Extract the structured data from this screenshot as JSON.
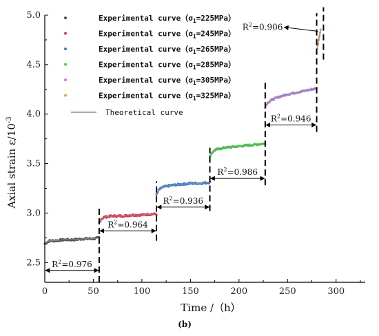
{
  "chart_data": {
    "type": "line",
    "xlabel": "Time /（h）",
    "ylabel": "Axial strain ε/10",
    "ylabel_exp": "-3",
    "caption": "(b)",
    "xlim": [
      0,
      330
    ],
    "ylim": [
      2.3,
      5.0
    ],
    "xticks": [
      0,
      50,
      100,
      150,
      200,
      250,
      300
    ],
    "yticks": [
      2.5,
      3.0,
      3.5,
      4.0,
      4.5,
      5.0
    ],
    "ytick_labels": [
      "2.5",
      "3.0",
      "3.5",
      "4.0",
      "4.5",
      "5.0"
    ],
    "series": [
      {
        "name": "Experimental curve（σ",
        "sub": "1",
        "suffix": "=225MPa）",
        "color": "#505050",
        "x": [
          0,
          5,
          10,
          20,
          30,
          40,
          50,
          56
        ],
        "y": [
          2.69,
          2.72,
          2.72,
          2.73,
          2.73,
          2.74,
          2.74,
          2.75
        ]
      },
      {
        "name": "Experimental curve（σ",
        "sub": "1",
        "suffix": "=245MPa）",
        "color": "#e0344a",
        "x": [
          56,
          58,
          62,
          70,
          80,
          90,
          100,
          110,
          115
        ],
        "y": [
          2.9,
          2.94,
          2.96,
          2.97,
          2.97,
          2.98,
          2.98,
          2.99,
          2.99
        ]
      },
      {
        "name": "Experimental curve（σ",
        "sub": "1",
        "suffix": "=265MPa）",
        "color": "#3a7fd5",
        "x": [
          115,
          117,
          121,
          130,
          140,
          150,
          160,
          170
        ],
        "y": [
          3.18,
          3.23,
          3.26,
          3.28,
          3.29,
          3.3,
          3.3,
          3.31
        ]
      },
      {
        "name": "Experimental curve（σ",
        "sub": "1",
        "suffix": "=285MPa）",
        "color": "#3fd53f",
        "x": [
          170,
          172,
          176,
          185,
          195,
          205,
          215,
          225,
          227
        ],
        "y": [
          3.57,
          3.61,
          3.64,
          3.66,
          3.67,
          3.68,
          3.69,
          3.7,
          3.7
        ]
      },
      {
        "name": "Experimental curve（σ",
        "sub": "1",
        "suffix": "=305MPa）",
        "color": "#b57fe0",
        "x": [
          227,
          229,
          233,
          240,
          250,
          260,
          270,
          280
        ],
        "y": [
          4.07,
          4.11,
          4.14,
          4.17,
          4.2,
          4.22,
          4.24,
          4.26
        ]
      },
      {
        "name": "Experimental curve（σ",
        "sub": "1",
        "suffix": "=325MPa）",
        "color": "#e8a13a",
        "x": [
          280,
          281,
          282,
          283,
          284
        ],
        "y": [
          4.63,
          4.69,
          4.75,
          4.8,
          4.85
        ]
      }
    ],
    "theory": {
      "name": "Theoretical curve",
      "color": "#8c8c8c"
    },
    "stage_boundaries": [
      56,
      115,
      170,
      227,
      280,
      287
    ],
    "stage_arrows": [
      {
        "x0": 0,
        "x1": 56,
        "y": 2.42,
        "label": "0.976"
      },
      {
        "x0": 56,
        "x1": 115,
        "y": 2.82,
        "label": "0.964"
      },
      {
        "x0": 115,
        "x1": 170,
        "y": 3.06,
        "label": "0.936"
      },
      {
        "x0": 170,
        "x1": 227,
        "y": 3.35,
        "label": "0.986"
      },
      {
        "x0": 227,
        "x1": 280,
        "y": 3.89,
        "label": "0.946"
      }
    ],
    "annotation_top": {
      "label": "0.906",
      "x": 282,
      "y": 4.85
    }
  }
}
